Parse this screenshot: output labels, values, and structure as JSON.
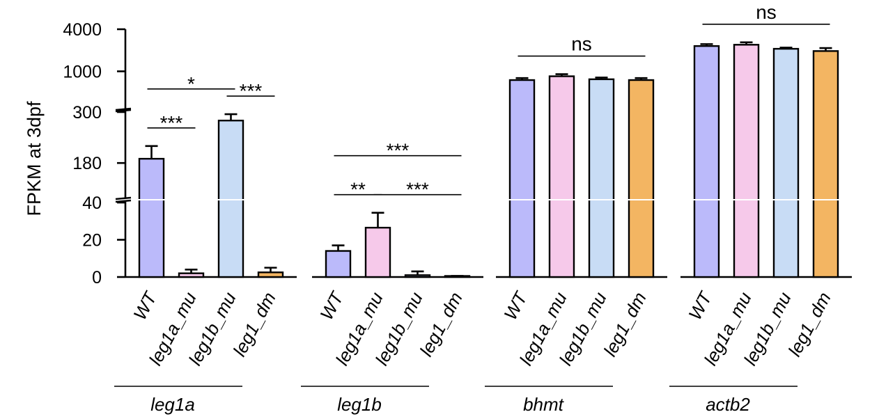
{
  "chart_data": {
    "type": "bar",
    "ylabel": "FPKM at 3dpf",
    "y_axis": {
      "scale": "segmented (broken axis)",
      "segments": [
        {
          "range": [
            0,
            40
          ],
          "ticks": [
            "0",
            "20",
            "40"
          ]
        },
        {
          "range": [
            100,
            300
          ],
          "ticks": [
            "180",
            "300"
          ]
        },
        {
          "range": [
            300,
            4000
          ],
          "scale": "log",
          "ticks": [
            "1000",
            "4000"
          ]
        }
      ]
    },
    "colors": {
      "WT": "#bbbafa",
      "leg1a_mu": "#f6c9ea",
      "leg1b_mu": "#c8dcf5",
      "leg1_dm": "#f3b562"
    },
    "groups": [
      {
        "gene": "leg1a",
        "bars": [
          {
            "label": "WT",
            "key": "WT",
            "value": 190,
            "err": 30
          },
          {
            "label": "leg1a_mu",
            "key": "leg1a_mu",
            "value": 2,
            "err": 2
          },
          {
            "label": "leg1b_mu",
            "key": "leg1b_mu",
            "value": 280,
            "err": 15
          },
          {
            "label": "leg1_dm",
            "key": "leg1_dm",
            "value": 2.5,
            "err": 2.5
          }
        ]
      },
      {
        "gene": "leg1b",
        "bars": [
          {
            "label": "WT",
            "key": "WT",
            "value": 14,
            "err": 3
          },
          {
            "label": "leg1a_mu",
            "key": "leg1a_mu",
            "value": 26.5,
            "err": 8
          },
          {
            "label": "leg1b_mu",
            "key": "leg1b_mu",
            "value": 1,
            "err": 2
          },
          {
            "label": "leg1_dm",
            "key": "leg1_dm",
            "value": 0.3,
            "err": 0.3
          }
        ]
      },
      {
        "gene": "bhmt",
        "bars": [
          {
            "label": "WT",
            "key": "WT",
            "value": 750,
            "err": 50
          },
          {
            "label": "leg1a_mu",
            "key": "leg1a_mu",
            "value": 850,
            "err": 60
          },
          {
            "label": "leg1b_mu",
            "key": "leg1b_mu",
            "value": 770,
            "err": 45
          },
          {
            "label": "leg1_dm",
            "key": "leg1_dm",
            "value": 750,
            "err": 50
          }
        ]
      },
      {
        "gene": "actb2",
        "bars": [
          {
            "label": "WT",
            "key": "WT",
            "value": 2300,
            "err": 150
          },
          {
            "label": "leg1a_mu",
            "key": "leg1a_mu",
            "value": 2400,
            "err": 200
          },
          {
            "label": "leg1b_mu",
            "key": "leg1b_mu",
            "value": 2100,
            "err": 80
          },
          {
            "label": "leg1_dm",
            "key": "leg1_dm",
            "value": 1950,
            "err": 200
          }
        ]
      }
    ],
    "significance": [
      {
        "group": 0,
        "from": 0,
        "to": 2,
        "label": "*"
      },
      {
        "group": 0,
        "from": 0,
        "to": 1,
        "label": "***"
      },
      {
        "group": 0,
        "from": 2,
        "to": 3,
        "label": "***"
      },
      {
        "group": 1,
        "from": 0,
        "to": 3,
        "label": "***"
      },
      {
        "group": 1,
        "from": 0,
        "to": 1,
        "label": "**"
      },
      {
        "group": 1,
        "from": 1,
        "to": 3,
        "label": "***"
      },
      {
        "group": 2,
        "from": 0,
        "to": 3,
        "label": "ns"
      },
      {
        "group": 3,
        "from": 0,
        "to": 3,
        "label": "ns"
      }
    ]
  }
}
